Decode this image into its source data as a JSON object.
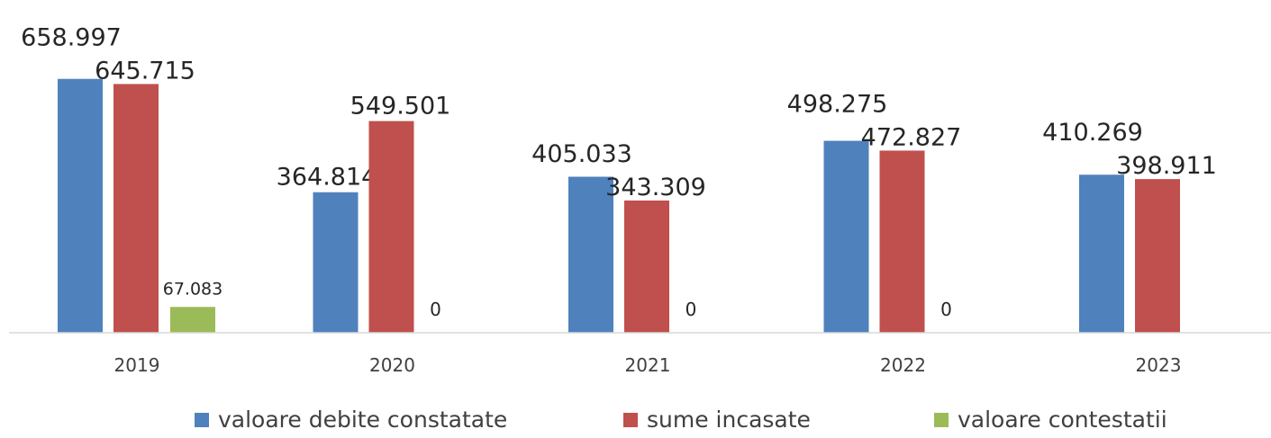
{
  "chart_data": {
    "type": "bar",
    "title": "",
    "xlabel": "",
    "ylabel": "",
    "ylim": [
      0,
      670000
    ],
    "grid": false,
    "legend_position": "bottom",
    "categories": [
      "2019",
      "2020",
      "2021",
      "2022",
      "2023"
    ],
    "series": [
      {
        "name": "valoare debite constatate",
        "color": "#4F81BD",
        "values": [
          658997,
          364814,
          405033,
          498275,
          410269
        ],
        "labels": [
          "658.997",
          "364.814",
          "405.033",
          "498.275",
          "410.269"
        ]
      },
      {
        "name": "sume incasate",
        "color": "#C0504D",
        "values": [
          645715,
          549501,
          343309,
          472827,
          398911
        ],
        "labels": [
          "645.715",
          "549.501",
          "343.309",
          "472.827",
          "398.911"
        ]
      },
      {
        "name": "valoare contestatii",
        "color": "#9BBB59",
        "values": [
          67083,
          0,
          0,
          0,
          null
        ],
        "labels": [
          "67.083",
          "0",
          "0",
          "0",
          null
        ]
      }
    ]
  }
}
